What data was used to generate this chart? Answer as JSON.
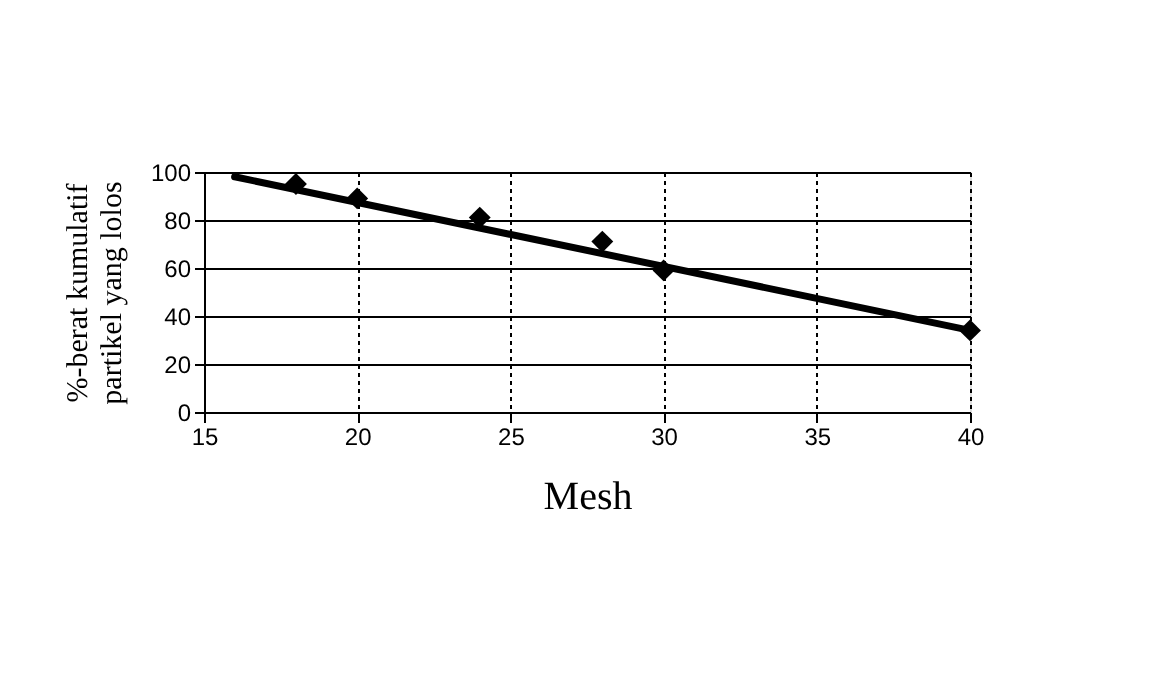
{
  "chart_data": {
    "type": "scatter",
    "xlabel": "Mesh",
    "ylabel": "%-berat kumulatif partikel yang lolos",
    "xlim": [
      15,
      40
    ],
    "xticks": [
      15,
      20,
      25,
      30,
      35,
      40
    ],
    "ylim": [
      0,
      100
    ],
    "yticks": [
      0,
      20,
      40,
      60,
      80,
      100
    ],
    "grid": true,
    "marker": "diamond",
    "series": [
      {
        "color": "#000000",
        "x": [
          18,
          20,
          24,
          28,
          30,
          40
        ],
        "values": [
          95,
          89,
          81,
          71,
          59,
          34
        ]
      },
      {
        "type": "line",
        "color": "#000000",
        "x": [
          16,
          40
        ],
        "values": [
          98,
          34
        ],
        "line_style": "solid",
        "marker": "none"
      }
    ]
  }
}
